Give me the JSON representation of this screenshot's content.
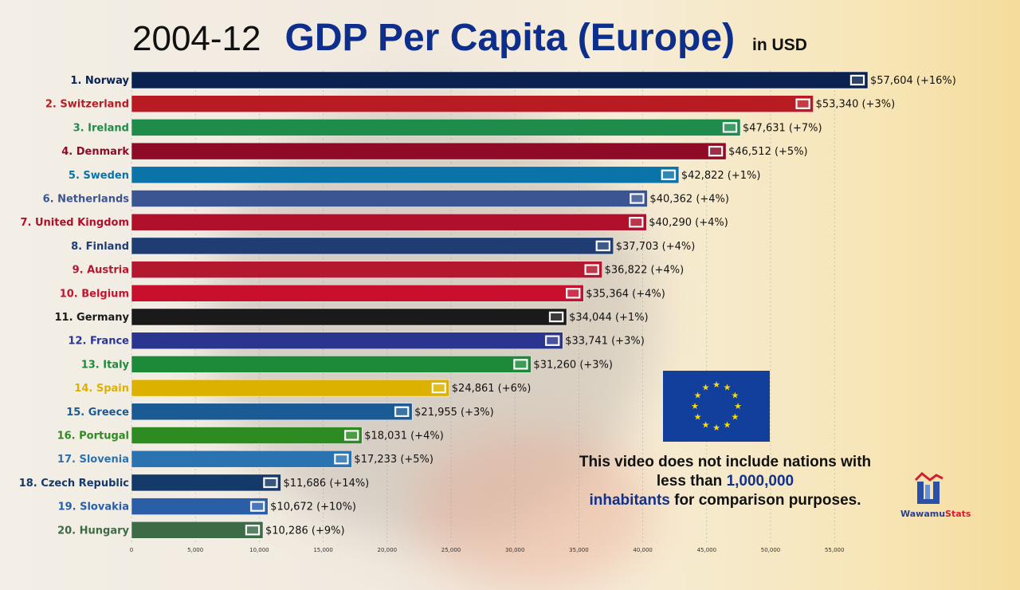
{
  "header": {
    "year": "2004-12",
    "title": "GDP Per Capita (Europe)",
    "unit": "in USD"
  },
  "chart_data": {
    "type": "bar",
    "orientation": "horizontal",
    "title": "GDP Per Capita (Europe)",
    "xlim": [
      0,
      57604
    ],
    "grid": true,
    "x_ticks": [
      "0",
      "5,000",
      "10,000",
      "15,000",
      "20,000",
      "25,000",
      "30,000",
      "35,000",
      "40,000",
      "45,000",
      "50,000",
      "55,000"
    ],
    "categories": [
      "1. Norway",
      "2. Switzerland",
      "3. Ireland",
      "4. Denmark",
      "5. Sweden",
      "6. Netherlands",
      "7. United Kingdom",
      "8. Finland",
      "9. Austria",
      "10. Belgium",
      "11. Germany",
      "12. France",
      "13. Italy",
      "14. Spain",
      "15. Greece",
      "16. Portugal",
      "17. Slovenia",
      "18. Czech Republic",
      "19. Slovakia",
      "20. Hungary"
    ],
    "values": [
      57604,
      53340,
      47631,
      46512,
      42822,
      40362,
      40290,
      37703,
      36822,
      35364,
      34044,
      33741,
      31260,
      24861,
      21955,
      18031,
      17233,
      11686,
      10672,
      10286
    ],
    "value_labels": [
      "$57,604 (+16%)",
      "$53,340 (+3%)",
      "$47,631 (+7%)",
      "$46,512 (+5%)",
      "$42,822 (+1%)",
      "$40,362 (+4%)",
      "$40,290 (+4%)",
      "$37,703 (+4%)",
      "$36,822 (+4%)",
      "$35,364 (+4%)",
      "$34,044 (+1%)",
      "$33,741 (+3%)",
      "$31,260 (+3%)",
      "$24,861 (+6%)",
      "$21,955 (+3%)",
      "$18,031 (+4%)",
      "$17,233 (+5%)",
      "$11,686 (+14%)",
      "$10,672 (+10%)",
      "$10,286 (+9%)"
    ],
    "colors": [
      "#0b2150",
      "#b81c22",
      "#1f8c4c",
      "#8e0a26",
      "#0a73a8",
      "#3a5591",
      "#b0102a",
      "#1f3d73",
      "#b4182e",
      "#c8102e",
      "#1a1a1a",
      "#2a3590",
      "#1d8a3a",
      "#dcb100",
      "#1a5a95",
      "#2e8b22",
      "#2a72b0",
      "#143a6a",
      "#2a5fa8",
      "#3d6b45"
    ]
  },
  "note": {
    "part1": "This video does not include nations with less than ",
    "highlight1": "1,000,000",
    "highlight2": "inhabitants",
    "part2": " for comparison purposes."
  },
  "logo": {
    "part1": "Wawamu",
    "part2": "Stats"
  },
  "eu_flag": {
    "background": "#133f9c",
    "stars": "#ffdd00"
  }
}
